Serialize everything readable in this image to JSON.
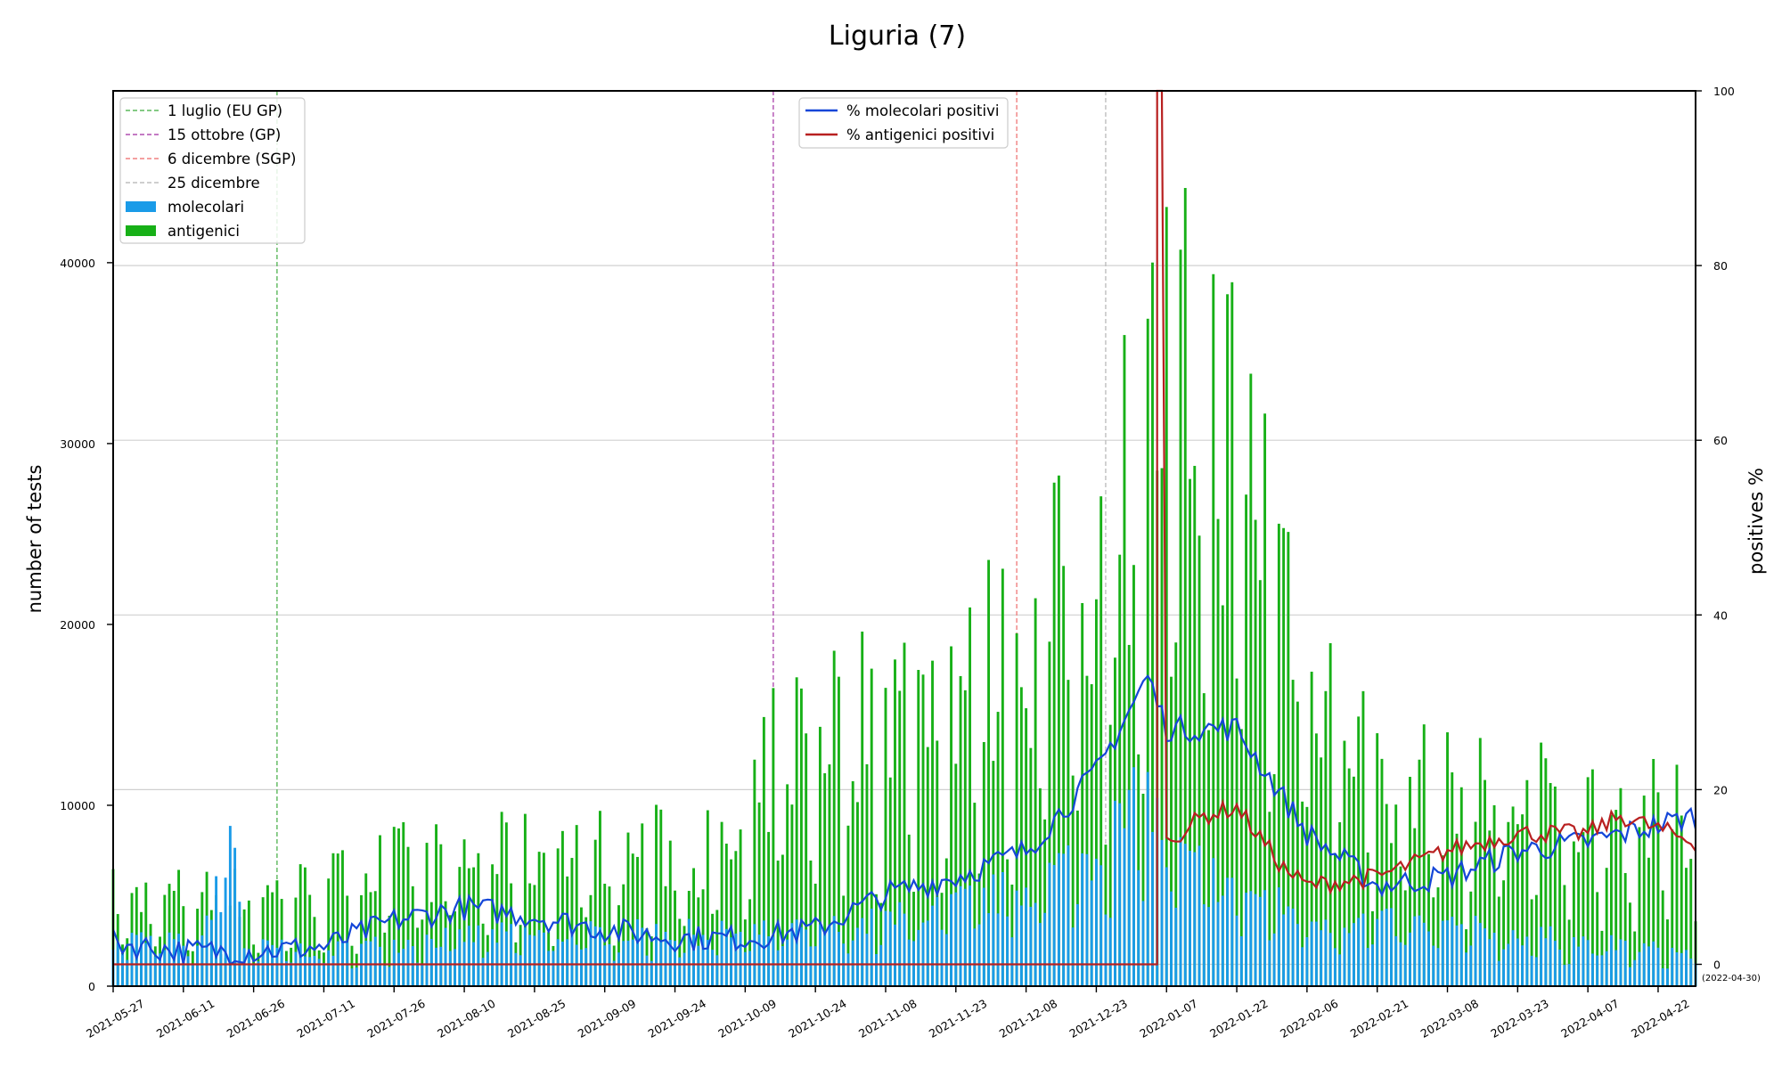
{
  "chart_data": {
    "type": "bar+line",
    "title": "Liguria (7)",
    "ylabel": "number of tests",
    "y2label": "positives %",
    "ylim": [
      0,
      49500
    ],
    "y2lim": [
      -2.5,
      100
    ],
    "yticks": [
      0,
      10000,
      20000,
      30000,
      40000
    ],
    "y2ticks": [
      0,
      20,
      40,
      60,
      80,
      100
    ],
    "x_start": "2021-05-27",
    "x_end": "2022-04-30",
    "xticks": [
      "2021-05-27",
      "2021-06-11",
      "2021-06-26",
      "2021-07-11",
      "2021-07-26",
      "2021-08-10",
      "2021-08-25",
      "2021-09-09",
      "2021-09-24",
      "2021-10-09",
      "2021-10-24",
      "2021-11-08",
      "2021-11-23",
      "2021-12-08",
      "2021-12-23",
      "2022-01-07",
      "2022-01-22",
      "2022-02-06",
      "2022-02-21",
      "2022-03-08",
      "2022-03-23",
      "2022-04-07",
      "2022-04-22"
    ],
    "end_note": "(2022-04-30)",
    "grid": true,
    "vlines": [
      {
        "date": "2021-07-01",
        "label": "1 luglio (EU GP)",
        "color": "#5cb85c"
      },
      {
        "date": "2021-10-15",
        "label": "15 ottobre (GP)",
        "color": "#b04fb0"
      },
      {
        "date": "2021-12-06",
        "label": "6 dicembre (SGP)",
        "color": "#f08080"
      },
      {
        "date": "2021-12-25",
        "label": "25 dicembre",
        "color": "#bfbfbf"
      }
    ],
    "legend_left": [
      "1 luglio (EU GP)",
      "15 ottobre (GP)",
      "6 dicembre (SGP)",
      "25 dicembre",
      "molecolari",
      "antigenici"
    ],
    "legend_right": [
      "% molecolari positivi",
      "% antigenici positivi"
    ],
    "colors": {
      "molecolari": "#1a9be8",
      "antigenici": "#17b017",
      "mol_line": "#1446d8",
      "ant_line": "#b82020"
    },
    "series": [
      {
        "name": "molecolari",
        "kind": "bar",
        "anchors": [
          [
            "2021-05-27",
            2700
          ],
          [
            "2021-06-15",
            2300
          ],
          [
            "2021-06-21",
            9500
          ],
          [
            "2021-06-24",
            2200
          ],
          [
            "2021-07-11",
            2000
          ],
          [
            "2021-08-10",
            2800
          ],
          [
            "2021-09-24",
            3000
          ],
          [
            "2021-10-09",
            2900
          ],
          [
            "2021-10-24",
            3100
          ],
          [
            "2021-11-08",
            3600
          ],
          [
            "2021-11-23",
            4500
          ],
          [
            "2021-12-08",
            5500
          ],
          [
            "2021-12-23",
            7600
          ],
          [
            "2022-01-03",
            10500
          ],
          [
            "2022-01-07",
            7500
          ],
          [
            "2022-01-22",
            5500
          ],
          [
            "2022-02-06",
            3800
          ],
          [
            "2022-02-21",
            3500
          ],
          [
            "2022-03-08",
            3300
          ],
          [
            "2022-03-23",
            2900
          ],
          [
            "2022-04-07",
            2400
          ],
          [
            "2022-04-30",
            1800
          ]
        ]
      },
      {
        "name": "antigenici",
        "kind": "bar",
        "anchors": [
          [
            "2021-05-27",
            5000
          ],
          [
            "2021-06-11",
            5000
          ],
          [
            "2021-06-26",
            5000
          ],
          [
            "2021-07-11",
            5500
          ],
          [
            "2021-07-26",
            6800
          ],
          [
            "2021-08-10",
            7000
          ],
          [
            "2021-08-25",
            7300
          ],
          [
            "2021-09-09",
            7600
          ],
          [
            "2021-09-24",
            7500
          ],
          [
            "2021-10-09",
            7500
          ],
          [
            "2021-10-15",
            13000
          ],
          [
            "2021-10-24",
            15000
          ],
          [
            "2021-11-08",
            15500
          ],
          [
            "2021-11-23",
            17000
          ],
          [
            "2021-12-08",
            19000
          ],
          [
            "2021-12-23",
            24000
          ],
          [
            "2022-01-07",
            34000
          ],
          [
            "2022-01-22",
            31000
          ],
          [
            "2022-02-06",
            20000
          ],
          [
            "2022-02-21",
            12000
          ],
          [
            "2022-03-08",
            10500
          ],
          [
            "2022-03-23",
            10500
          ],
          [
            "2022-04-07",
            9800
          ],
          [
            "2022-04-30",
            9000
          ]
        ]
      },
      {
        "name": "% molecolari positivi",
        "kind": "line",
        "axis": "right",
        "anchors": [
          [
            "2021-05-27",
            2.5
          ],
          [
            "2021-06-11",
            1.5
          ],
          [
            "2021-06-26",
            1.5
          ],
          [
            "2021-07-11",
            2
          ],
          [
            "2021-07-26",
            5
          ],
          [
            "2021-08-10",
            6.5
          ],
          [
            "2021-08-25",
            5.5
          ],
          [
            "2021-09-09",
            4
          ],
          [
            "2021-09-24",
            3
          ],
          [
            "2021-10-09",
            3
          ],
          [
            "2021-10-24",
            4
          ],
          [
            "2021-11-08",
            8
          ],
          [
            "2021-11-23",
            10
          ],
          [
            "2021-12-08",
            13
          ],
          [
            "2021-12-23",
            22
          ],
          [
            "2022-01-03",
            33
          ],
          [
            "2022-01-07",
            27
          ],
          [
            "2022-01-22",
            27
          ],
          [
            "2022-02-06",
            15
          ],
          [
            "2022-02-21",
            9
          ],
          [
            "2022-03-08",
            10
          ],
          [
            "2022-03-23",
            13
          ],
          [
            "2022-04-07",
            14
          ],
          [
            "2022-04-30",
            17
          ]
        ]
      },
      {
        "name": "% antigenici positivi",
        "kind": "line",
        "axis": "right",
        "anchors": [
          [
            "2021-05-27",
            0
          ],
          [
            "2022-01-05",
            0
          ],
          [
            "2022-01-05",
            100
          ],
          [
            "2022-01-06",
            100
          ],
          [
            "2022-01-07",
            14
          ],
          [
            "2022-01-15",
            17
          ],
          [
            "2022-01-22",
            18
          ],
          [
            "2022-02-01",
            11
          ],
          [
            "2022-02-06",
            9
          ],
          [
            "2022-02-21",
            10
          ],
          [
            "2022-03-08",
            13
          ],
          [
            "2022-03-23",
            15
          ],
          [
            "2022-04-07",
            15
          ],
          [
            "2022-04-14",
            17
          ],
          [
            "2022-04-30",
            14
          ]
        ]
      }
    ]
  }
}
